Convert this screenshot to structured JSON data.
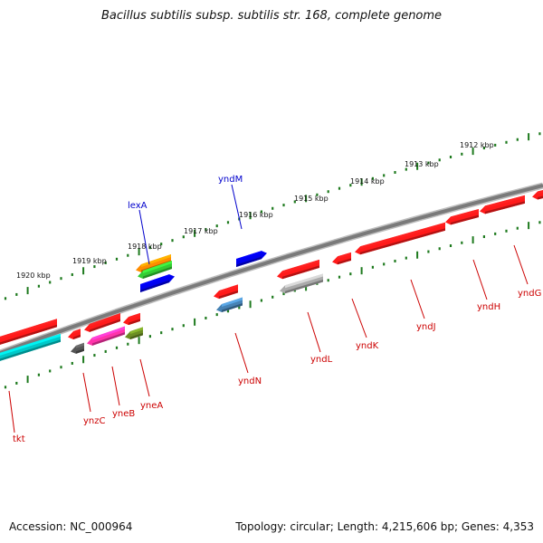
{
  "title": "Bacillus subtilis subsp. subtilis str. 168, complete genome",
  "accession_label": "Accession: NC_000964",
  "topology_label": "Topology: circular; Length: 4,215,606 bp; Genes: 4,353",
  "colors": {
    "backbone": "#7a7a7a",
    "tick": "#1e7a1e",
    "label_red": "#cc0000",
    "label_blue": "#0000cc"
  },
  "scale_labels": [
    "1920 kbp",
    "1919 kbp",
    "1918 kbp",
    "1917 kbp",
    "1916 kbp",
    "1915 kbp",
    "1914 kbp",
    "1913 kbp",
    "1912 kbp"
  ],
  "genes": [
    {
      "name": "tkt",
      "color": "#ff1a1a"
    },
    {
      "name": "",
      "color": "#00c8c8"
    },
    {
      "name": "ynzC",
      "color": "#555555"
    },
    {
      "name": "yneB",
      "color": "#ff33aa"
    },
    {
      "name": "yneA",
      "color": "#6b8e23"
    },
    {
      "name": "lexA",
      "color": "#ff8c00"
    },
    {
      "name": "",
      "color": "#33cc33"
    },
    {
      "name": "",
      "color": "#0000ee"
    },
    {
      "name": "yndN",
      "color": "#4682b4"
    },
    {
      "name": "yndM",
      "color": "#0000ee"
    },
    {
      "name": "yndL",
      "color": "#aaaaaa"
    },
    {
      "name": "yndK",
      "color": "#ff1a1a"
    },
    {
      "name": "yndJ",
      "color": "#ff1a1a"
    },
    {
      "name": "yndH",
      "color": "#ff1a1a"
    },
    {
      "name": "yndG",
      "color": "#ff1a1a"
    }
  ]
}
